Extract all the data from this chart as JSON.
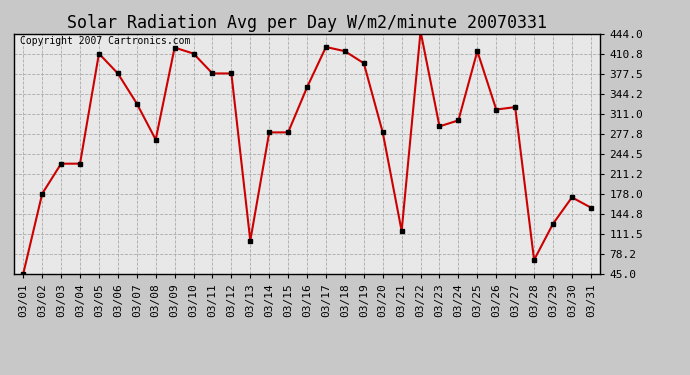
{
  "title": "Solar Radiation Avg per Day W/m2/minute 20070331",
  "copyright": "Copyright 2007 Cartronics.com",
  "dates": [
    "03/01",
    "03/02",
    "03/03",
    "03/04",
    "03/05",
    "03/06",
    "03/07",
    "03/08",
    "03/09",
    "03/10",
    "03/11",
    "03/12",
    "03/13",
    "03/14",
    "03/15",
    "03/16",
    "03/17",
    "03/18",
    "03/19",
    "03/20",
    "03/21",
    "03/22",
    "03/23",
    "03/24",
    "03/25",
    "03/26",
    "03/27",
    "03/28",
    "03/29",
    "03/30",
    "03/31"
  ],
  "values": [
    45.0,
    178.0,
    228.0,
    228.0,
    411.0,
    378.0,
    328.0,
    268.0,
    421.0,
    411.0,
    378.0,
    378.0,
    100.0,
    280.0,
    280.0,
    355.0,
    422.0,
    415.0,
    395.0,
    280.0,
    116.0,
    448.0,
    290.0,
    300.0,
    415.0,
    318.0,
    322.0,
    68.0,
    128.0,
    172.0,
    155.0
  ],
  "line_color": "#cc0000",
  "marker_color": "#000000",
  "bg_color": "#c8c8c8",
  "plot_bg_color": "#e8e8e8",
  "grid_color": "#aaaaaa",
  "yticks": [
    45.0,
    78.2,
    111.5,
    144.8,
    178.0,
    211.2,
    244.5,
    277.8,
    311.0,
    344.2,
    377.5,
    410.8,
    444.0
  ],
  "ylim": [
    45.0,
    444.0
  ],
  "title_fontsize": 12,
  "copyright_fontsize": 7,
  "tick_fontsize": 8
}
